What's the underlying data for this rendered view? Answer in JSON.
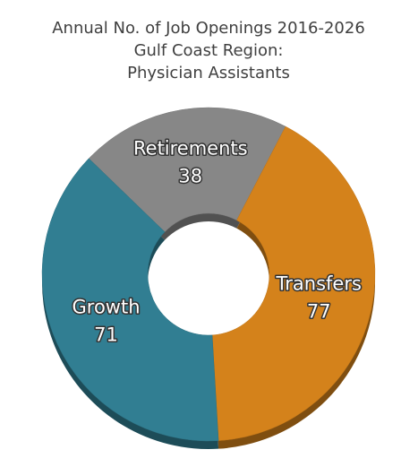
{
  "chart_data": {
    "type": "donut",
    "title": [
      "Annual No. of Job Openings 2016-2026",
      "Gulf Coast Region:",
      "Physician Assistants"
    ],
    "categories": [
      "Retirements",
      "Transfers",
      "Growth"
    ],
    "values": [
      38,
      77,
      71
    ],
    "colors": [
      "#878787",
      "#d4821b",
      "#317e92"
    ]
  }
}
